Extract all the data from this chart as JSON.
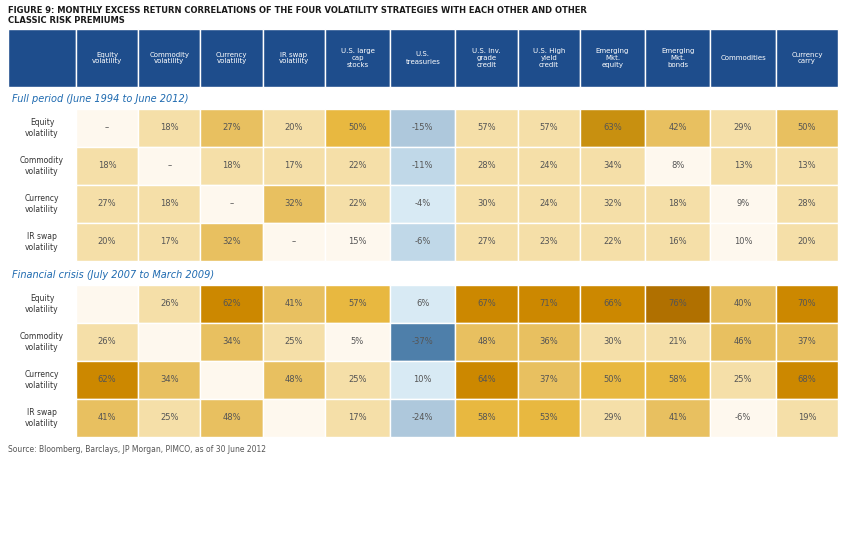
{
  "title_line1": "FIGURE 9: MONTHLY EXCESS RETURN CORRELATIONS OF THE FOUR VOLATILITY STRATEGIES WITH EACH OTHER AND OTHER",
  "title_line2": "CLASSIC RISK PREMIUMS",
  "source": "Source: Bloomberg, Barclays, JP Morgan, PIMCO, as of 30 June 2012",
  "col_headers": [
    "Equity\nvolatility",
    "Commodity\nvolatility",
    "Currency\nvolatility",
    "IR swap\nvolatility",
    "U.S. large\ncap\nstocks",
    "U.S.\ntreasuries",
    "U.S. Inv.\ngrade\ncredit",
    "U.S. High\nyield\ncredit",
    "Emerging\nMkt.\nequity",
    "Emerging\nMkt.\nbonds",
    "Commodities",
    "Currency\ncarry"
  ],
  "row_headers_full": [
    "Equity\nvolatility",
    "Commodity\nvolatility",
    "Currency\nvolatility",
    "IR swap\nvolatility"
  ],
  "row_headers_crisis": [
    "Equity\nvolatility",
    "Commodity\nvolatility",
    "Currency\nvolatility",
    "IR swap\nvolatility"
  ],
  "section1_label": "Full period (June 1994 to June 2012)",
  "section2_label": "Financial crisis (July 2007 to March 2009)",
  "full_data": [
    [
      "–",
      "18%",
      "27%",
      "20%",
      "50%",
      "-15%",
      "57%",
      "57%",
      "63%",
      "42%",
      "29%",
      "50%"
    ],
    [
      "18%",
      "–",
      "18%",
      "17%",
      "22%",
      "-11%",
      "28%",
      "24%",
      "34%",
      "8%",
      "13%",
      "13%"
    ],
    [
      "27%",
      "18%",
      "–",
      "32%",
      "22%",
      "-4%",
      "30%",
      "24%",
      "32%",
      "18%",
      "9%",
      "28%"
    ],
    [
      "20%",
      "17%",
      "32%",
      "–",
      "15%",
      "-6%",
      "27%",
      "23%",
      "22%",
      "16%",
      "10%",
      "20%"
    ]
  ],
  "crisis_data": [
    [
      "",
      "26%",
      "62%",
      "41%",
      "57%",
      "6%",
      "67%",
      "71%",
      "66%",
      "76%",
      "40%",
      "70%"
    ],
    [
      "26%",
      "",
      "34%",
      "25%",
      "5%",
      "-37%",
      "48%",
      "36%",
      "30%",
      "21%",
      "46%",
      "37%"
    ],
    [
      "62%",
      "34%",
      "",
      "48%",
      "25%",
      "10%",
      "64%",
      "37%",
      "50%",
      "58%",
      "25%",
      "68%"
    ],
    [
      "41%",
      "25%",
      "48%",
      "",
      "17%",
      "-24%",
      "58%",
      "53%",
      "29%",
      "41%",
      "-6%",
      "19%"
    ]
  ],
  "full_colors": [
    [
      "#fef8ee",
      "#f5dfa8",
      "#e8c060",
      "#f5dfa8",
      "#e8b840",
      "#aec8dc",
      "#f5dfa8",
      "#f5dfa8",
      "#c89010",
      "#e8c060",
      "#f5dfa8",
      "#e8c060"
    ],
    [
      "#f5dfa8",
      "#fef8ee",
      "#f5dfa8",
      "#f5dfa8",
      "#f5dfa8",
      "#c0d8e8",
      "#f5dfa8",
      "#f5dfa8",
      "#f5dfa8",
      "#fef8ee",
      "#f5dfa8",
      "#f5dfa8"
    ],
    [
      "#f5dfa8",
      "#f5dfa8",
      "#fef8ee",
      "#e8c060",
      "#f5dfa8",
      "#d8eaf4",
      "#f5dfa8",
      "#f5dfa8",
      "#f5dfa8",
      "#f5dfa8",
      "#fef8ee",
      "#f5dfa8"
    ],
    [
      "#f5dfa8",
      "#f5dfa8",
      "#e8c060",
      "#fef8ee",
      "#fef8ee",
      "#c0d8e8",
      "#f5dfa8",
      "#f5dfa8",
      "#f5dfa8",
      "#f5dfa8",
      "#fef8ee",
      "#f5dfa8"
    ]
  ],
  "crisis_colors": [
    [
      "#fef8ee",
      "#f5dfa8",
      "#cc8800",
      "#e8c060",
      "#e8b840",
      "#d8eaf4",
      "#cc8800",
      "#cc8800",
      "#cc8800",
      "#b07000",
      "#e8c060",
      "#cc8800"
    ],
    [
      "#f5dfa8",
      "#fef8ee",
      "#e8c060",
      "#f5dfa8",
      "#fef8ee",
      "#4e7faa",
      "#e8c060",
      "#e8c060",
      "#f5dfa8",
      "#f5dfa8",
      "#e8c060",
      "#e8c060"
    ],
    [
      "#cc8800",
      "#e8c060",
      "#fef8ee",
      "#e8c060",
      "#f5dfa8",
      "#d8eaf4",
      "#cc8800",
      "#e8c060",
      "#e8b840",
      "#e8b840",
      "#f5dfa8",
      "#cc8800"
    ],
    [
      "#e8c060",
      "#f5dfa8",
      "#e8c060",
      "#fef8ee",
      "#f5dfa8",
      "#aec8dc",
      "#e8b840",
      "#e8b840",
      "#f5dfa8",
      "#e8c060",
      "#fef8ee",
      "#f5dfa8"
    ]
  ],
  "header_bg": "#1e4d8c",
  "header_text": "#ffffff",
  "section_label_color": "#1e6ab0",
  "row_label_color": "#333333",
  "cell_text_color": "#555555",
  "title_color": "#1a1a1a",
  "background_color": "#ffffff",
  "border_color": "#ffffff",
  "gap_color": "#f0f0f0"
}
